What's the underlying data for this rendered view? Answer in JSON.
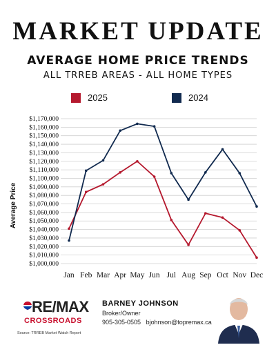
{
  "header": {
    "title": "MARKET UPDATE",
    "subtitle": "AVERAGE HOME PRICE TRENDS",
    "subtitle2": "ALL TRREB AREAS - ALL HOME TYPES"
  },
  "colors": {
    "series_2025": "#b5192e",
    "series_2024": "#112a4f",
    "grid": "#cfcfcf"
  },
  "chart_data": {
    "type": "line",
    "categories": [
      "Jan",
      "Feb",
      "Mar",
      "Apr",
      "May",
      "Jun",
      "Jul",
      "Aug",
      "Sep",
      "Oct",
      "Nov",
      "Dec"
    ],
    "series": [
      {
        "name": "2025",
        "color": "#b5192e",
        "values": [
          1041000,
          1084000,
          1093000,
          1107000,
          1120000,
          1102000,
          1051000,
          1022000,
          1059000,
          1054000,
          1039000,
          1007000
        ]
      },
      {
        "name": "2024",
        "color": "#112a4f",
        "values": [
          1027000,
          1109000,
          1121000,
          1156000,
          1164000,
          1161000,
          1106000,
          1075000,
          1107000,
          1134000,
          1106000,
          1067000
        ]
      }
    ],
    "ylabel": "Average Price",
    "xlabel": "",
    "ylim": [
      1000000,
      1170000
    ],
    "yticks": [
      "$1,000,000",
      "$1,010,000",
      "$1,020,000",
      "$1,030,000",
      "$1,040,000",
      "$1,050,000",
      "$1,060,000",
      "$1,070,000",
      "$1,080,000",
      "$1,090,000",
      "$1,100,000",
      "$1,110,000",
      "$1,120,000",
      "$1,130,000",
      "$1,140,000",
      "$1,150,000",
      "$1,160,000",
      "$1,170,000"
    ],
    "grid": true,
    "legend": "top"
  },
  "footer": {
    "logo_text": "RE/MAX",
    "logo_sub": "CROSSROADS",
    "agent_name": "BARNEY JOHNSON",
    "agent_title": "Broker/Owner",
    "agent_phone": "905-305-0505",
    "agent_email": "bjohnson@topremax.ca",
    "source": "Source: TRREB Market Watch Report"
  }
}
